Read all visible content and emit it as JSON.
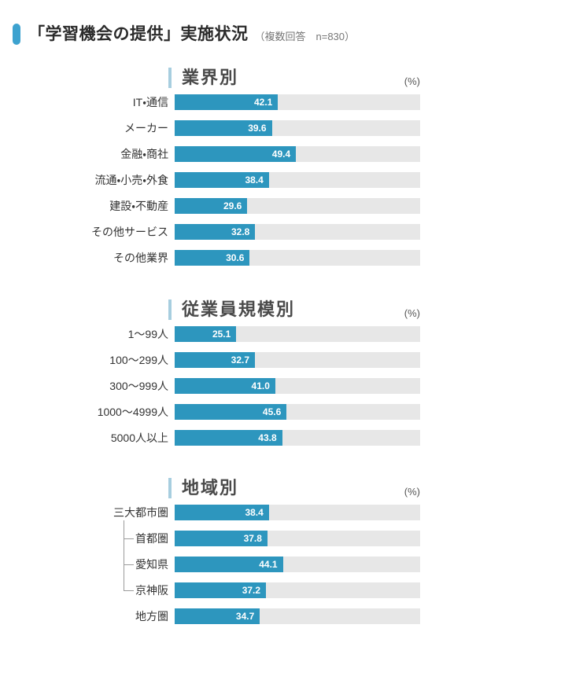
{
  "page": {
    "title": "「学習機会の提供」実施状況",
    "subtitle": "（複数回答　n=830）"
  },
  "colors": {
    "bar": "#2d96be",
    "track": "#e7e7e7",
    "title_accent": "#3da2cf",
    "section_accent": "#a7cedf",
    "value_text": "#ffffff",
    "connector": "#9b9b9b"
  },
  "chart_data": [
    {
      "type": "bar",
      "title": "業界別",
      "unit_label": "(%)",
      "orientation": "horizontal",
      "xlim": [
        0,
        100
      ],
      "grid": false,
      "legend": "none",
      "categories": [
        "IT・通信",
        "メーカー",
        "金融・商社",
        "流通・小売・外食",
        "建設・不動産",
        "その他サービス",
        "その他業界"
      ],
      "values": [
        42.1,
        39.6,
        49.4,
        38.4,
        29.6,
        32.8,
        30.6
      ],
      "value_labels": [
        "42.1",
        "39.6",
        "49.4",
        "38.4",
        "29.6",
        "32.8",
        "30.6"
      ]
    },
    {
      "type": "bar",
      "title": "従業員規模別",
      "unit_label": "(%)",
      "orientation": "horizontal",
      "xlim": [
        0,
        100
      ],
      "grid": false,
      "legend": "none",
      "categories": [
        "1～99人",
        "100～299人",
        "300～999人",
        "1000～4999人",
        "5000人以上"
      ],
      "values": [
        25.1,
        32.7,
        41.0,
        45.6,
        43.8
      ],
      "value_labels": [
        "25.1",
        "32.7",
        "41.0",
        "45.6",
        "43.8"
      ]
    },
    {
      "type": "bar",
      "title": "地域別",
      "unit_label": "(%)",
      "orientation": "horizontal",
      "xlim": [
        0,
        100
      ],
      "grid": false,
      "legend": "none",
      "categories": [
        "三大都市圏",
        "首都圏",
        "愛知県",
        "京神阪",
        "地方圏"
      ],
      "values": [
        38.4,
        37.8,
        44.1,
        37.2,
        34.7
      ],
      "value_labels": [
        "38.4",
        "37.8",
        "44.1",
        "37.2",
        "34.7"
      ],
      "sub_items": [
        "首都圏",
        "愛知県",
        "京神阪"
      ]
    }
  ]
}
